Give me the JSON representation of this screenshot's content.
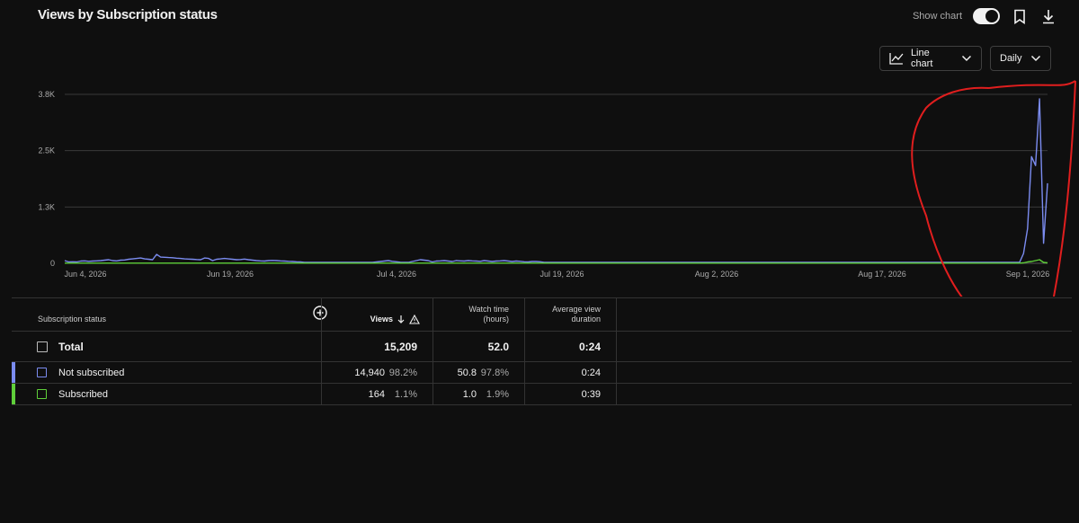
{
  "header": {
    "title": "Views by Subscription status",
    "show_chart_label": "Show chart",
    "chart_type": "Line chart",
    "period": "Daily"
  },
  "colors": {
    "not_subscribed": "#7b8cf0",
    "subscribed": "#5fcf3a",
    "annotation": "#e01e1e"
  },
  "chart_data": {
    "type": "line",
    "x_tick_labels": [
      "Jun 4, 2026",
      "Jun 19, 2026",
      "Jul 4, 2026",
      "Jul 19, 2026",
      "Aug 2, 2026",
      "Aug 17, 2026",
      "Sep 1, 2026"
    ],
    "y_tick_labels": [
      "3.8K",
      "2.5K",
      "1.3K",
      "0"
    ],
    "ylim": [
      0,
      3800
    ],
    "series": [
      {
        "name": "Not subscribed",
        "color": "#7b8cf0",
        "values": [
          60,
          30,
          35,
          30,
          50,
          55,
          45,
          50,
          55,
          60,
          70,
          80,
          60,
          55,
          70,
          75,
          90,
          100,
          110,
          120,
          100,
          90,
          80,
          200,
          140,
          135,
          130,
          125,
          115,
          110,
          100,
          95,
          90,
          85,
          80,
          120,
          110,
          60,
          90,
          100,
          110,
          100,
          90,
          80,
          85,
          95,
          80,
          70,
          60,
          55,
          50,
          60,
          65,
          60,
          55,
          50,
          45,
          40,
          35,
          30,
          20,
          20,
          20,
          20,
          20,
          20,
          20,
          20,
          20,
          20,
          20,
          20,
          20,
          20,
          20,
          20,
          20,
          20,
          30,
          40,
          50,
          60,
          45,
          35,
          25,
          20,
          20,
          40,
          60,
          80,
          70,
          60,
          30,
          50,
          55,
          60,
          50,
          40,
          60,
          55,
          50,
          60,
          55,
          50,
          45,
          60,
          50,
          40,
          50,
          55,
          60,
          50,
          40,
          50,
          45,
          35,
          30,
          40,
          40,
          35,
          20,
          20,
          20,
          20,
          20,
          20,
          20,
          20,
          20,
          20,
          20,
          20,
          20,
          20,
          20,
          20,
          20,
          20,
          20,
          20,
          20,
          20,
          20,
          20,
          20,
          20,
          20,
          20,
          20,
          20,
          20,
          20,
          20,
          20,
          20,
          20,
          20,
          20,
          20,
          20,
          20,
          20,
          20,
          20,
          20,
          20,
          20,
          20,
          20,
          20,
          20,
          20,
          20,
          20,
          20,
          20,
          20,
          20,
          20,
          20,
          20,
          20,
          20,
          20,
          20,
          20,
          20,
          20,
          20,
          20,
          20,
          20,
          20,
          20,
          20,
          20,
          20,
          20,
          20,
          20,
          20,
          20,
          20,
          20,
          20,
          20,
          20,
          20,
          20,
          20,
          20,
          20,
          20,
          20,
          20,
          20,
          20,
          20,
          20,
          20,
          20,
          20,
          20,
          20,
          20,
          20,
          20,
          20,
          20,
          20,
          20,
          20,
          20,
          20,
          20,
          20,
          20,
          20,
          20,
          20,
          220,
          780,
          2400,
          2200,
          3700,
          450,
          1800
        ]
      },
      {
        "name": "Subscribed",
        "color": "#5fcf3a",
        "values": [
          5,
          4,
          4,
          4,
          4,
          4,
          4,
          4,
          4,
          4,
          4,
          4,
          4,
          4,
          4,
          4,
          4,
          4,
          4,
          4,
          4,
          4,
          4,
          5,
          4,
          4,
          4,
          4,
          4,
          4,
          4,
          4,
          4,
          4,
          4,
          4,
          4,
          4,
          4,
          4,
          4,
          4,
          4,
          4,
          4,
          4,
          4,
          4,
          4,
          4,
          4,
          4,
          4,
          4,
          4,
          4,
          4,
          4,
          4,
          4,
          4,
          4,
          4,
          4,
          4,
          4,
          4,
          4,
          4,
          4,
          4,
          4,
          4,
          4,
          4,
          4,
          4,
          4,
          4,
          4,
          4,
          4,
          4,
          4,
          4,
          4,
          4,
          4,
          4,
          4,
          4,
          4,
          4,
          4,
          4,
          4,
          4,
          4,
          4,
          4,
          4,
          4,
          4,
          4,
          4,
          4,
          4,
          4,
          4,
          4,
          4,
          4,
          4,
          4,
          4,
          4,
          4,
          4,
          4,
          4,
          4,
          4,
          4,
          4,
          4,
          4,
          4,
          4,
          4,
          4,
          4,
          4,
          4,
          4,
          4,
          4,
          4,
          4,
          4,
          4,
          4,
          4,
          4,
          4,
          4,
          4,
          4,
          4,
          4,
          4,
          4,
          4,
          4,
          4,
          4,
          4,
          4,
          4,
          4,
          4,
          4,
          4,
          4,
          4,
          4,
          4,
          4,
          4,
          4,
          4,
          4,
          4,
          4,
          4,
          4,
          4,
          4,
          4,
          4,
          4,
          4,
          4,
          4,
          4,
          4,
          4,
          4,
          4,
          4,
          4,
          4,
          4,
          4,
          4,
          4,
          4,
          4,
          4,
          4,
          4,
          4,
          4,
          4,
          4,
          4,
          4,
          4,
          4,
          4,
          4,
          4,
          4,
          4,
          4,
          4,
          4,
          4,
          4,
          4,
          4,
          4,
          4,
          4,
          4,
          4,
          4,
          4,
          4,
          4,
          4,
          4,
          4,
          4,
          4,
          4,
          4,
          4,
          4,
          4,
          4,
          10,
          30,
          40,
          60,
          80,
          20,
          10
        ]
      }
    ]
  },
  "table": {
    "col_headers": {
      "subscription_status": "Subscription status",
      "views": "Views",
      "watch_time_1": "Watch time",
      "watch_time_2": "(hours)",
      "avg_duration_1": "Average view",
      "avg_duration_2": "duration"
    },
    "total": {
      "label": "Total",
      "views": "15,209",
      "watch_time": "52.0",
      "avg_duration": "0:24"
    },
    "rows": [
      {
        "label": "Not subscribed",
        "views": "14,940",
        "views_pct": "98.2%",
        "watch_time": "50.8",
        "watch_time_pct": "97.8%",
        "avg_duration": "0:24"
      },
      {
        "label": "Subscribed",
        "views": "164",
        "views_pct": "1.1%",
        "watch_time": "1.0",
        "watch_time_pct": "1.9%",
        "avg_duration": "0:39"
      }
    ]
  }
}
